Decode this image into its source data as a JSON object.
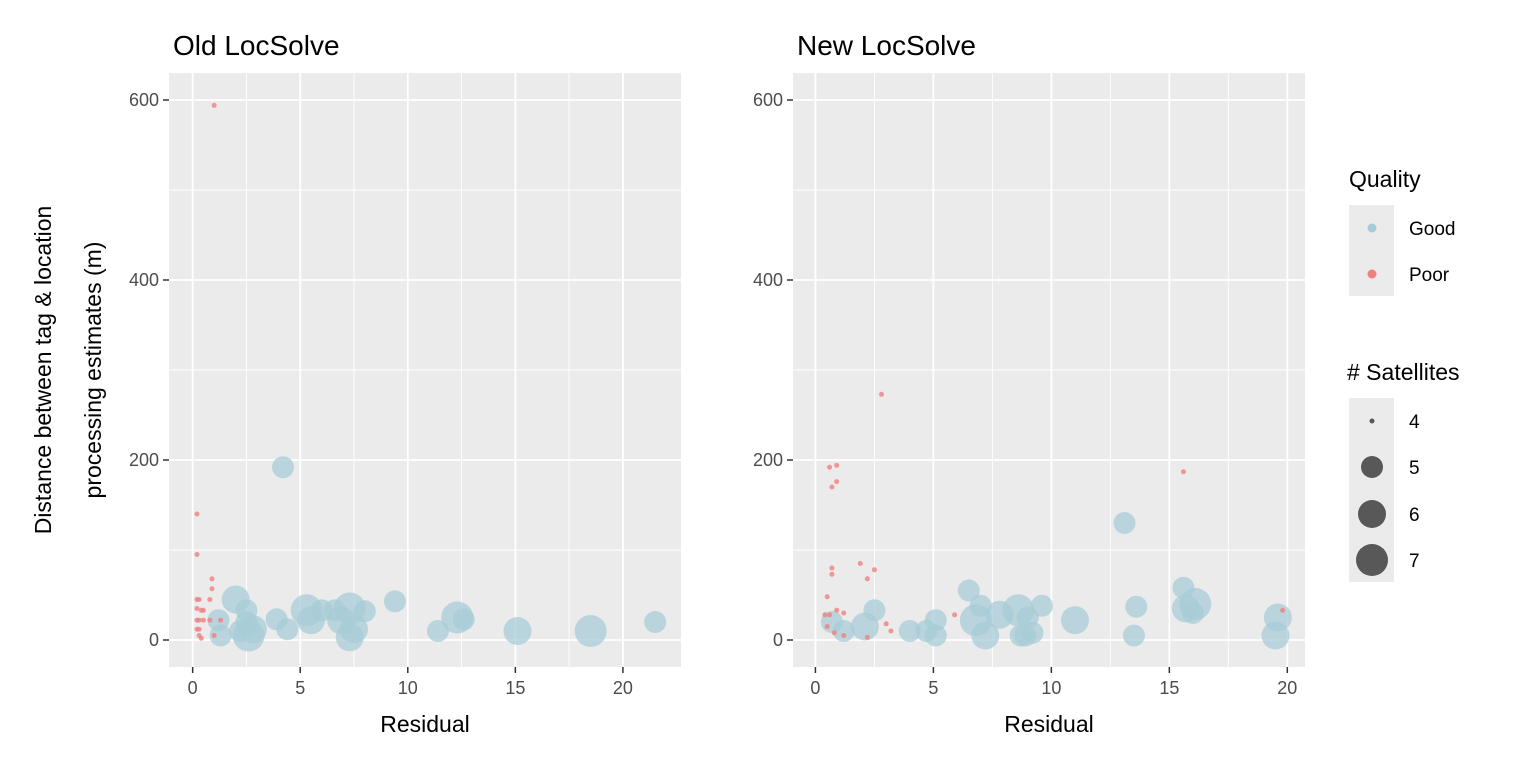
{
  "colors": {
    "good": "#a8ccd7",
    "poor": "#f08080",
    "panel_bg": "#ebebeb",
    "grid": "#ffffff",
    "size_key": "#333333"
  },
  "chart_data": [
    {
      "type": "scatter",
      "title": "Old LocSolve",
      "xlabel": "Residual",
      "ylabel": [
        "Distance between tag & location",
        "processing estimates (m)"
      ],
      "xlim": [
        -1.1,
        22.7
      ],
      "ylim": [
        -30,
        630
      ],
      "xticks": [
        0,
        5,
        10,
        15,
        20
      ],
      "yticks": [
        0,
        200,
        400,
        600
      ],
      "grid": true,
      "series": [
        {
          "name": "Good",
          "points": [
            [
              1.2,
              22,
              5
            ],
            [
              1.3,
              5,
              5
            ],
            [
              2.0,
              45,
              6
            ],
            [
              2.2,
              10,
              5
            ],
            [
              2.5,
              20,
              5
            ],
            [
              2.5,
              33,
              5
            ],
            [
              2.6,
              5,
              7
            ],
            [
              2.8,
              12,
              6
            ],
            [
              3.9,
              23,
              5
            ],
            [
              4.2,
              192,
              5
            ],
            [
              4.4,
              12,
              5
            ],
            [
              5.3,
              33,
              7
            ],
            [
              5.5,
              22,
              6
            ],
            [
              6.0,
              33,
              5
            ],
            [
              6.6,
              33,
              5
            ],
            [
              6.9,
              22,
              6
            ],
            [
              7.3,
              35,
              7
            ],
            [
              7.3,
              3,
              6
            ],
            [
              7.5,
              12,
              6
            ],
            [
              8.0,
              32,
              5
            ],
            [
              9.4,
              43,
              5
            ],
            [
              11.4,
              10,
              5
            ],
            [
              12.3,
              25,
              7
            ],
            [
              12.6,
              23,
              5
            ],
            [
              15.1,
              10,
              6
            ],
            [
              18.5,
              10,
              7
            ],
            [
              21.5,
              20,
              5
            ]
          ]
        },
        {
          "name": "Poor",
          "points": [
            [
              1.0,
              594,
              4
            ],
            [
              0.2,
              140,
              4
            ],
            [
              0.2,
              95,
              4
            ],
            [
              0.2,
              45,
              4
            ],
            [
              0.3,
              45,
              4
            ],
            [
              0.8,
              45,
              4
            ],
            [
              0.9,
              68,
              4
            ],
            [
              0.9,
              57,
              4
            ],
            [
              0.2,
              35,
              4
            ],
            [
              0.4,
              33,
              4
            ],
            [
              0.5,
              33,
              4
            ],
            [
              0.2,
              22,
              4
            ],
            [
              0.3,
              22,
              4
            ],
            [
              0.5,
              22,
              4
            ],
            [
              0.8,
              22,
              4
            ],
            [
              1.3,
              22,
              4
            ],
            [
              0.2,
              12,
              4
            ],
            [
              0.3,
              12,
              4
            ],
            [
              0.3,
              5,
              4
            ],
            [
              0.4,
              2,
              4
            ],
            [
              1.0,
              5,
              4
            ]
          ]
        }
      ]
    },
    {
      "type": "scatter",
      "title": "New LocSolve",
      "xlabel": "Residual",
      "ylabel": "",
      "xlim": [
        -0.95,
        20.75
      ],
      "ylim": [
        -30,
        630
      ],
      "xticks": [
        0,
        5,
        10,
        15,
        20
      ],
      "yticks": [
        0,
        200,
        400,
        600
      ],
      "grid": true,
      "series": [
        {
          "name": "Good",
          "points": [
            [
              0.7,
              20,
              5
            ],
            [
              1.2,
              10,
              5
            ],
            [
              2.1,
              15,
              6
            ],
            [
              2.5,
              33,
              5
            ],
            [
              4.0,
              10,
              5
            ],
            [
              4.7,
              10,
              5
            ],
            [
              5.1,
              5,
              5
            ],
            [
              5.1,
              22,
              5
            ],
            [
              6.5,
              55,
              5
            ],
            [
              6.8,
              22,
              7
            ],
            [
              7.0,
              38,
              5
            ],
            [
              7.2,
              5,
              6
            ],
            [
              7.8,
              28,
              6
            ],
            [
              8.6,
              33,
              7
            ],
            [
              8.7,
              5,
              5
            ],
            [
              8.9,
              5,
              5
            ],
            [
              9.0,
              25,
              5
            ],
            [
              9.2,
              8,
              5
            ],
            [
              9.6,
              38,
              5
            ],
            [
              11.0,
              22,
              6
            ],
            [
              13.1,
              130,
              5
            ],
            [
              13.5,
              5,
              5
            ],
            [
              13.6,
              37,
              5
            ],
            [
              15.6,
              58,
              5
            ],
            [
              15.7,
              35,
              6
            ],
            [
              16.0,
              30,
              5
            ],
            [
              16.1,
              40,
              7
            ],
            [
              19.5,
              5,
              6
            ],
            [
              19.6,
              25,
              6
            ]
          ]
        },
        {
          "name": "Poor",
          "points": [
            [
              2.8,
              273,
              4
            ],
            [
              0.6,
              192,
              4
            ],
            [
              0.9,
              194,
              4
            ],
            [
              0.7,
              170,
              4
            ],
            [
              0.9,
              176,
              4
            ],
            [
              15.6,
              187,
              4
            ],
            [
              0.7,
              80,
              4
            ],
            [
              0.7,
              73,
              4
            ],
            [
              1.9,
              85,
              4
            ],
            [
              2.2,
              68,
              4
            ],
            [
              2.5,
              78,
              4
            ],
            [
              0.5,
              48,
              4
            ],
            [
              0.4,
              28,
              4
            ],
            [
              0.6,
              28,
              4
            ],
            [
              0.9,
              33,
              4
            ],
            [
              1.2,
              30,
              4
            ],
            [
              0.5,
              15,
              4
            ],
            [
              0.8,
              8,
              4
            ],
            [
              1.2,
              5,
              4
            ],
            [
              2.2,
              3,
              4
            ],
            [
              3.0,
              18,
              4
            ],
            [
              3.2,
              10,
              4
            ],
            [
              5.9,
              28,
              4
            ],
            [
              19.8,
              33,
              4
            ]
          ]
        }
      ]
    }
  ],
  "legend": {
    "quality": {
      "title": "Quality",
      "items": [
        "Good",
        "Poor"
      ]
    },
    "satellites": {
      "title": "# Satellites",
      "items": [
        4,
        5,
        6,
        7
      ]
    }
  }
}
